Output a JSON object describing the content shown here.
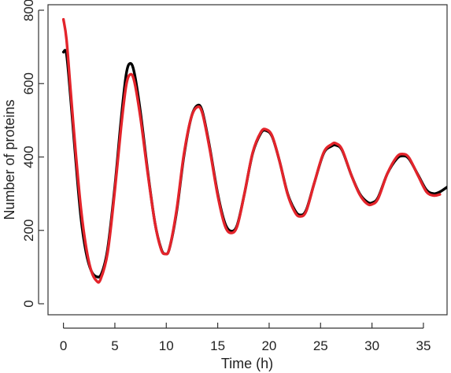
{
  "chart_data": {
    "type": "line",
    "title": "",
    "xlabel": "Time (h)",
    "ylabel": "Number of proteins",
    "xlim": [
      -1.5,
      37.3
    ],
    "ylim": [
      -30,
      815
    ],
    "x_ticks": [
      0,
      5,
      10,
      15,
      20,
      25,
      30,
      35
    ],
    "x_tick_labels": [
      "0",
      "5",
      "10",
      "15",
      "20",
      "25",
      "30",
      "35"
    ],
    "y_ticks": [
      0,
      200,
      400,
      600,
      800
    ],
    "y_tick_labels": [
      "0",
      "200",
      "400",
      "600",
      "800"
    ],
    "grid": false,
    "legend": "none",
    "series": [
      {
        "color": "#000000",
        "points": [
          [
            0,
            686
          ],
          [
            0.3,
            680
          ],
          [
            0.7,
            560
          ],
          [
            1.2,
            390
          ],
          [
            1.7,
            235
          ],
          [
            2.2,
            140
          ],
          [
            2.7,
            90
          ],
          [
            3.2,
            74
          ],
          [
            3.7,
            82
          ],
          [
            4.3,
            150
          ],
          [
            5.0,
            320
          ],
          [
            5.6,
            500
          ],
          [
            6.1,
            625
          ],
          [
            6.5,
            655
          ],
          [
            6.9,
            628
          ],
          [
            7.5,
            520
          ],
          [
            8.2,
            360
          ],
          [
            8.9,
            220
          ],
          [
            9.5,
            150
          ],
          [
            9.9,
            136
          ],
          [
            10.3,
            150
          ],
          [
            11.0,
            250
          ],
          [
            11.7,
            400
          ],
          [
            12.4,
            505
          ],
          [
            13.0,
            540
          ],
          [
            13.5,
            525
          ],
          [
            14.2,
            430
          ],
          [
            15.0,
            300
          ],
          [
            15.7,
            220
          ],
          [
            16.3,
            198
          ],
          [
            16.9,
            215
          ],
          [
            17.6,
            300
          ],
          [
            18.4,
            410
          ],
          [
            19.2,
            465
          ],
          [
            19.7,
            472
          ],
          [
            20.3,
            455
          ],
          [
            21.0,
            390
          ],
          [
            21.8,
            300
          ],
          [
            22.5,
            255
          ],
          [
            23.0,
            242
          ],
          [
            23.6,
            255
          ],
          [
            24.4,
            330
          ],
          [
            25.3,
            410
          ],
          [
            26.1,
            430
          ],
          [
            26.5,
            432
          ],
          [
            27.1,
            418
          ],
          [
            28.0,
            350
          ],
          [
            28.8,
            300
          ],
          [
            29.5,
            278
          ],
          [
            30.0,
            275
          ],
          [
            30.6,
            290
          ],
          [
            31.5,
            355
          ],
          [
            32.4,
            395
          ],
          [
            33.0,
            403
          ],
          [
            33.6,
            395
          ],
          [
            34.5,
            350
          ],
          [
            35.3,
            310
          ],
          [
            36.0,
            300
          ],
          [
            36.6,
            305
          ],
          [
            37.3,
            318
          ]
        ]
      },
      {
        "color": "#e3242b",
        "points": [
          [
            0,
            775
          ],
          [
            0.3,
            720
          ],
          [
            0.7,
            580
          ],
          [
            1.2,
            410
          ],
          [
            1.7,
            260
          ],
          [
            2.2,
            155
          ],
          [
            2.7,
            90
          ],
          [
            3.2,
            63
          ],
          [
            3.6,
            66
          ],
          [
            4.3,
            140
          ],
          [
            5.0,
            310
          ],
          [
            5.6,
            480
          ],
          [
            6.1,
            595
          ],
          [
            6.5,
            625
          ],
          [
            6.9,
            605
          ],
          [
            7.5,
            505
          ],
          [
            8.2,
            355
          ],
          [
            8.9,
            220
          ],
          [
            9.5,
            148
          ],
          [
            9.9,
            136
          ],
          [
            10.3,
            150
          ],
          [
            11.0,
            255
          ],
          [
            11.7,
            405
          ],
          [
            12.4,
            505
          ],
          [
            13.0,
            536
          ],
          [
            13.5,
            520
          ],
          [
            14.2,
            425
          ],
          [
            15.0,
            295
          ],
          [
            15.7,
            213
          ],
          [
            16.3,
            193
          ],
          [
            16.9,
            212
          ],
          [
            17.6,
            300
          ],
          [
            18.4,
            412
          ],
          [
            19.2,
            468
          ],
          [
            19.7,
            475
          ],
          [
            20.3,
            457
          ],
          [
            21.0,
            390
          ],
          [
            21.8,
            298
          ],
          [
            22.5,
            250
          ],
          [
            23.0,
            238
          ],
          [
            23.6,
            252
          ],
          [
            24.4,
            330
          ],
          [
            25.3,
            412
          ],
          [
            26.1,
            435
          ],
          [
            26.5,
            437
          ],
          [
            27.1,
            420
          ],
          [
            28.0,
            350
          ],
          [
            28.8,
            298
          ],
          [
            29.5,
            273
          ],
          [
            30.0,
            271
          ],
          [
            30.6,
            287
          ],
          [
            31.5,
            355
          ],
          [
            32.4,
            400
          ],
          [
            33.0,
            408
          ],
          [
            33.6,
            398
          ],
          [
            34.5,
            348
          ],
          [
            35.3,
            305
          ],
          [
            36.0,
            295
          ],
          [
            36.6,
            298
          ]
        ]
      }
    ]
  }
}
